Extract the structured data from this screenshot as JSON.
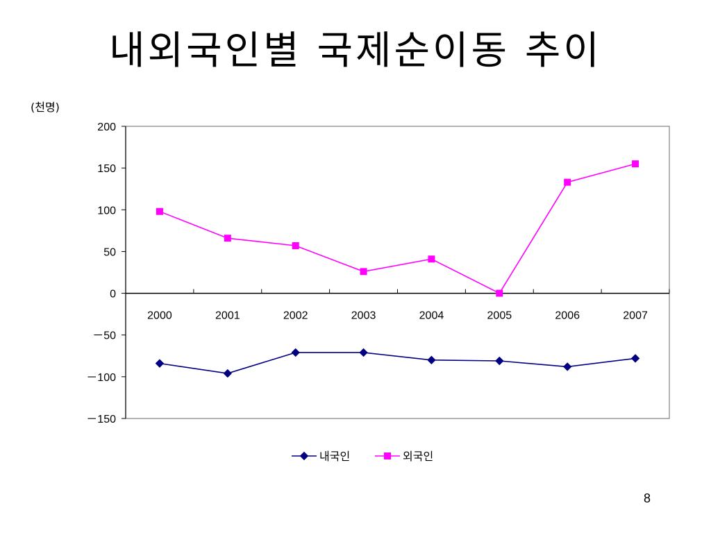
{
  "slide": {
    "title": "내외국인별 국제순이동 추이",
    "page_number": "8"
  },
  "chart_data": {
    "type": "line",
    "unit_label": "(천명)",
    "title": "",
    "xlabel": "",
    "ylabel": "",
    "categories": [
      "2000",
      "2001",
      "2002",
      "2003",
      "2004",
      "2005",
      "2006",
      "2007"
    ],
    "ylim": [
      -150,
      200
    ],
    "y_ticks": [
      200,
      150,
      100,
      50,
      0,
      -50,
      -100,
      -150
    ],
    "y_tick_labels": [
      "200",
      "150",
      "100",
      "50",
      "0",
      "－50",
      "－100",
      "－150"
    ],
    "grid": false,
    "legend_position": "bottom",
    "series": [
      {
        "name": "내국인",
        "values": [
          -84,
          -96,
          -71,
          -71,
          -80,
          -81,
          -88,
          -78
        ],
        "color": "#000080",
        "marker": "diamond"
      },
      {
        "name": "외국인",
        "values": [
          98,
          66,
          57,
          26,
          41,
          0,
          133,
          155
        ],
        "color": "#FF00FF",
        "marker": "square"
      }
    ]
  }
}
